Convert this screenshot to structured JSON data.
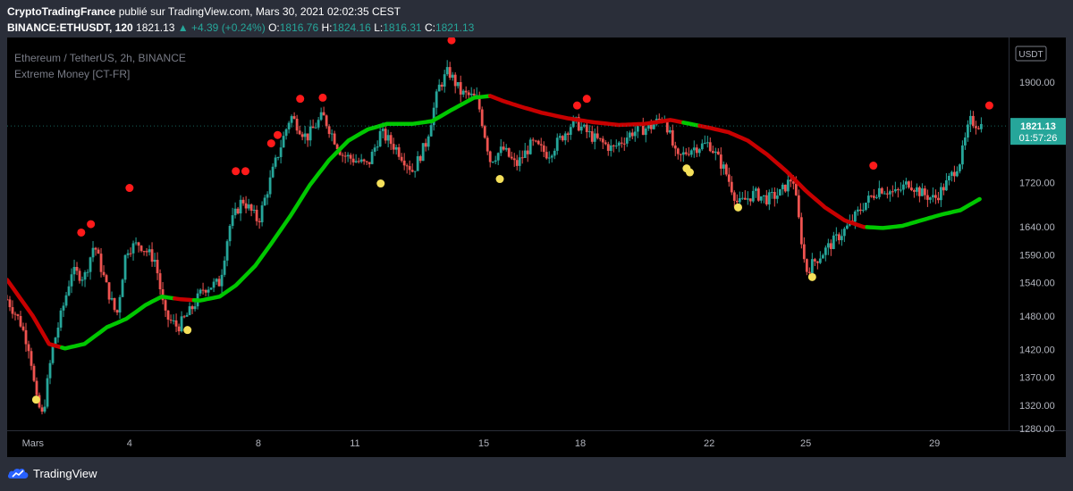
{
  "header": {
    "author": "CryptoTradingFrance",
    "published": "publié sur TradingView.com, Mars 30, 2021 02:02:35 CEST",
    "symbol": "BINANCE:ETHUSDT, 120",
    "last": "1821.13",
    "change": "▲ +4.39 (+0.24%)",
    "ohlc": {
      "o_label": "O:",
      "o": "1816.76",
      "h_label": "H:",
      "h": "1824.16",
      "l_label": "L:",
      "l": "1816.31",
      "c_label": "C:",
      "c": "1821.13"
    }
  },
  "legend": {
    "title": "Ethereum / TetherUS, 2h, BINANCE",
    "indicator": "Extreme Money [CT-FR]"
  },
  "price_badge": {
    "price": "1821.13",
    "countdown": "01:57:26"
  },
  "currency": "USDT",
  "footer": {
    "brand": "TradingView"
  },
  "colors": {
    "up": "#26a69a",
    "down": "#ef5350",
    "ma_up": "#00c800",
    "ma_down": "#c80000",
    "signal_top": "#ff1a1a",
    "signal_bottom": "#f5e05a",
    "axis_text": "#b2b5be"
  },
  "chart_data": {
    "type": "candlestick",
    "title": "Ethereum / TetherUS, 2h, BINANCE",
    "y_ticks": [
      1320,
      1370,
      1420,
      1480,
      1540,
      1590,
      1640,
      1720,
      1900
    ],
    "y_ticks_partial": [
      1280
    ],
    "ylim": [
      1275,
      1980
    ],
    "x_ticks": [
      {
        "label": "Mars",
        "day": 1
      },
      {
        "label": "4",
        "day": 4
      },
      {
        "label": "8",
        "day": 8
      },
      {
        "label": "11",
        "day": 11
      },
      {
        "label": "15",
        "day": 15
      },
      {
        "label": "18",
        "day": 18
      },
      {
        "label": "22",
        "day": 22
      },
      {
        "label": "25",
        "day": 25
      },
      {
        "label": "29",
        "day": 29
      }
    ],
    "xlim_days": [
      0.2,
      31.3
    ],
    "price_path": [
      [
        0.2,
        1510
      ],
      [
        0.6,
        1470
      ],
      [
        0.9,
        1420
      ],
      [
        1.1,
        1330
      ],
      [
        1.3,
        1300
      ],
      [
        1.6,
        1420
      ],
      [
        2.0,
        1510
      ],
      [
        2.2,
        1560
      ],
      [
        2.6,
        1550
      ],
      [
        2.9,
        1610
      ],
      [
        3.3,
        1530
      ],
      [
        3.6,
        1480
      ],
      [
        3.9,
        1600
      ],
      [
        4.3,
        1610
      ],
      [
        4.8,
        1580
      ],
      [
        5.1,
        1480
      ],
      [
        5.5,
        1460
      ],
      [
        5.9,
        1490
      ],
      [
        6.3,
        1530
      ],
      [
        6.8,
        1540
      ],
      [
        7.1,
        1640
      ],
      [
        7.5,
        1690
      ],
      [
        8.0,
        1650
      ],
      [
        8.5,
        1750
      ],
      [
        9.0,
        1840
      ],
      [
        9.5,
        1800
      ],
      [
        10.0,
        1840
      ],
      [
        10.6,
        1770
      ],
      [
        11.0,
        1760
      ],
      [
        11.4,
        1750
      ],
      [
        11.8,
        1810
      ],
      [
        12.3,
        1780
      ],
      [
        12.8,
        1740
      ],
      [
        13.2,
        1790
      ],
      [
        13.6,
        1890
      ],
      [
        13.9,
        1920
      ],
      [
        14.3,
        1880
      ],
      [
        14.8,
        1870
      ],
      [
        15.2,
        1760
      ],
      [
        15.6,
        1780
      ],
      [
        16.0,
        1750
      ],
      [
        16.5,
        1790
      ],
      [
        17.0,
        1770
      ],
      [
        17.4,
        1800
      ],
      [
        17.8,
        1830
      ],
      [
        18.4,
        1800
      ],
      [
        19.0,
        1780
      ],
      [
        19.6,
        1810
      ],
      [
        20.2,
        1820
      ],
      [
        20.6,
        1840
      ],
      [
        21.0,
        1760
      ],
      [
        21.4,
        1780
      ],
      [
        22.0,
        1790
      ],
      [
        22.5,
        1740
      ],
      [
        22.9,
        1680
      ],
      [
        23.4,
        1700
      ],
      [
        23.8,
        1690
      ],
      [
        24.2,
        1700
      ],
      [
        24.6,
        1730
      ],
      [
        25.0,
        1560
      ],
      [
        25.3,
        1580
      ],
      [
        25.8,
        1610
      ],
      [
        26.3,
        1640
      ],
      [
        26.8,
        1680
      ],
      [
        27.3,
        1710
      ],
      [
        27.8,
        1700
      ],
      [
        28.2,
        1720
      ],
      [
        28.6,
        1700
      ],
      [
        29.0,
        1690
      ],
      [
        29.4,
        1720
      ],
      [
        29.8,
        1760
      ],
      [
        30.1,
        1830
      ],
      [
        30.5,
        1821
      ]
    ],
    "moving_average": [
      [
        0.2,
        1545
      ],
      [
        1.0,
        1480
      ],
      [
        1.5,
        1430
      ],
      [
        2.0,
        1422
      ],
      [
        2.6,
        1430
      ],
      [
        3.3,
        1460
      ],
      [
        3.9,
        1475
      ],
      [
        4.5,
        1500
      ],
      [
        5.0,
        1515
      ],
      [
        5.6,
        1510
      ],
      [
        6.2,
        1508
      ],
      [
        6.8,
        1515
      ],
      [
        7.3,
        1535
      ],
      [
        7.9,
        1570
      ],
      [
        8.4,
        1610
      ],
      [
        9.0,
        1660
      ],
      [
        9.6,
        1715
      ],
      [
        10.2,
        1760
      ],
      [
        10.8,
        1795
      ],
      [
        11.4,
        1815
      ],
      [
        12.0,
        1825
      ],
      [
        12.8,
        1825
      ],
      [
        13.4,
        1830
      ],
      [
        14.0,
        1850
      ],
      [
        14.7,
        1872
      ],
      [
        15.2,
        1875
      ],
      [
        15.6,
        1866
      ],
      [
        16.2,
        1855
      ],
      [
        16.8,
        1845
      ],
      [
        17.6,
        1835
      ],
      [
        18.4,
        1828
      ],
      [
        19.2,
        1823
      ],
      [
        20.0,
        1825
      ],
      [
        20.8,
        1832
      ],
      [
        21.4,
        1825
      ],
      [
        22.0,
        1818
      ],
      [
        22.6,
        1810
      ],
      [
        23.2,
        1795
      ],
      [
        23.8,
        1770
      ],
      [
        24.4,
        1740
      ],
      [
        25.0,
        1705
      ],
      [
        25.6,
        1675
      ],
      [
        26.2,
        1652
      ],
      [
        26.8,
        1640
      ],
      [
        27.4,
        1638
      ],
      [
        28.0,
        1642
      ],
      [
        28.6,
        1652
      ],
      [
        29.2,
        1662
      ],
      [
        29.8,
        1670
      ],
      [
        30.4,
        1690
      ]
    ],
    "ma_color_segments": [
      {
        "from": 0.2,
        "to": 1.9,
        "trend": "down"
      },
      {
        "from": 1.9,
        "to": 5.4,
        "trend": "up"
      },
      {
        "from": 5.4,
        "to": 6.0,
        "trend": "down"
      },
      {
        "from": 6.0,
        "to": 15.2,
        "trend": "up"
      },
      {
        "from": 15.2,
        "to": 21.2,
        "trend": "down"
      },
      {
        "from": 21.2,
        "to": 21.7,
        "trend": "up"
      },
      {
        "from": 21.7,
        "to": 26.9,
        "trend": "down"
      },
      {
        "from": 26.9,
        "to": 30.4,
        "trend": "up"
      }
    ],
    "signals_top": [
      [
        2.5,
        1630
      ],
      [
        2.8,
        1645
      ],
      [
        4.0,
        1710
      ],
      [
        7.3,
        1740
      ],
      [
        7.6,
        1740
      ],
      [
        8.4,
        1790
      ],
      [
        8.6,
        1805
      ],
      [
        9.3,
        1870
      ],
      [
        10.0,
        1872
      ],
      [
        14.0,
        1975
      ],
      [
        17.9,
        1858
      ],
      [
        18.2,
        1870
      ],
      [
        27.1,
        1750
      ],
      [
        30.7,
        1858
      ]
    ],
    "signals_bottom": [
      [
        1.1,
        1330
      ],
      [
        5.8,
        1455
      ],
      [
        11.8,
        1718
      ],
      [
        15.5,
        1726
      ],
      [
        21.3,
        1745
      ],
      [
        21.4,
        1738
      ],
      [
        22.9,
        1675
      ],
      [
        25.2,
        1550
      ]
    ]
  }
}
